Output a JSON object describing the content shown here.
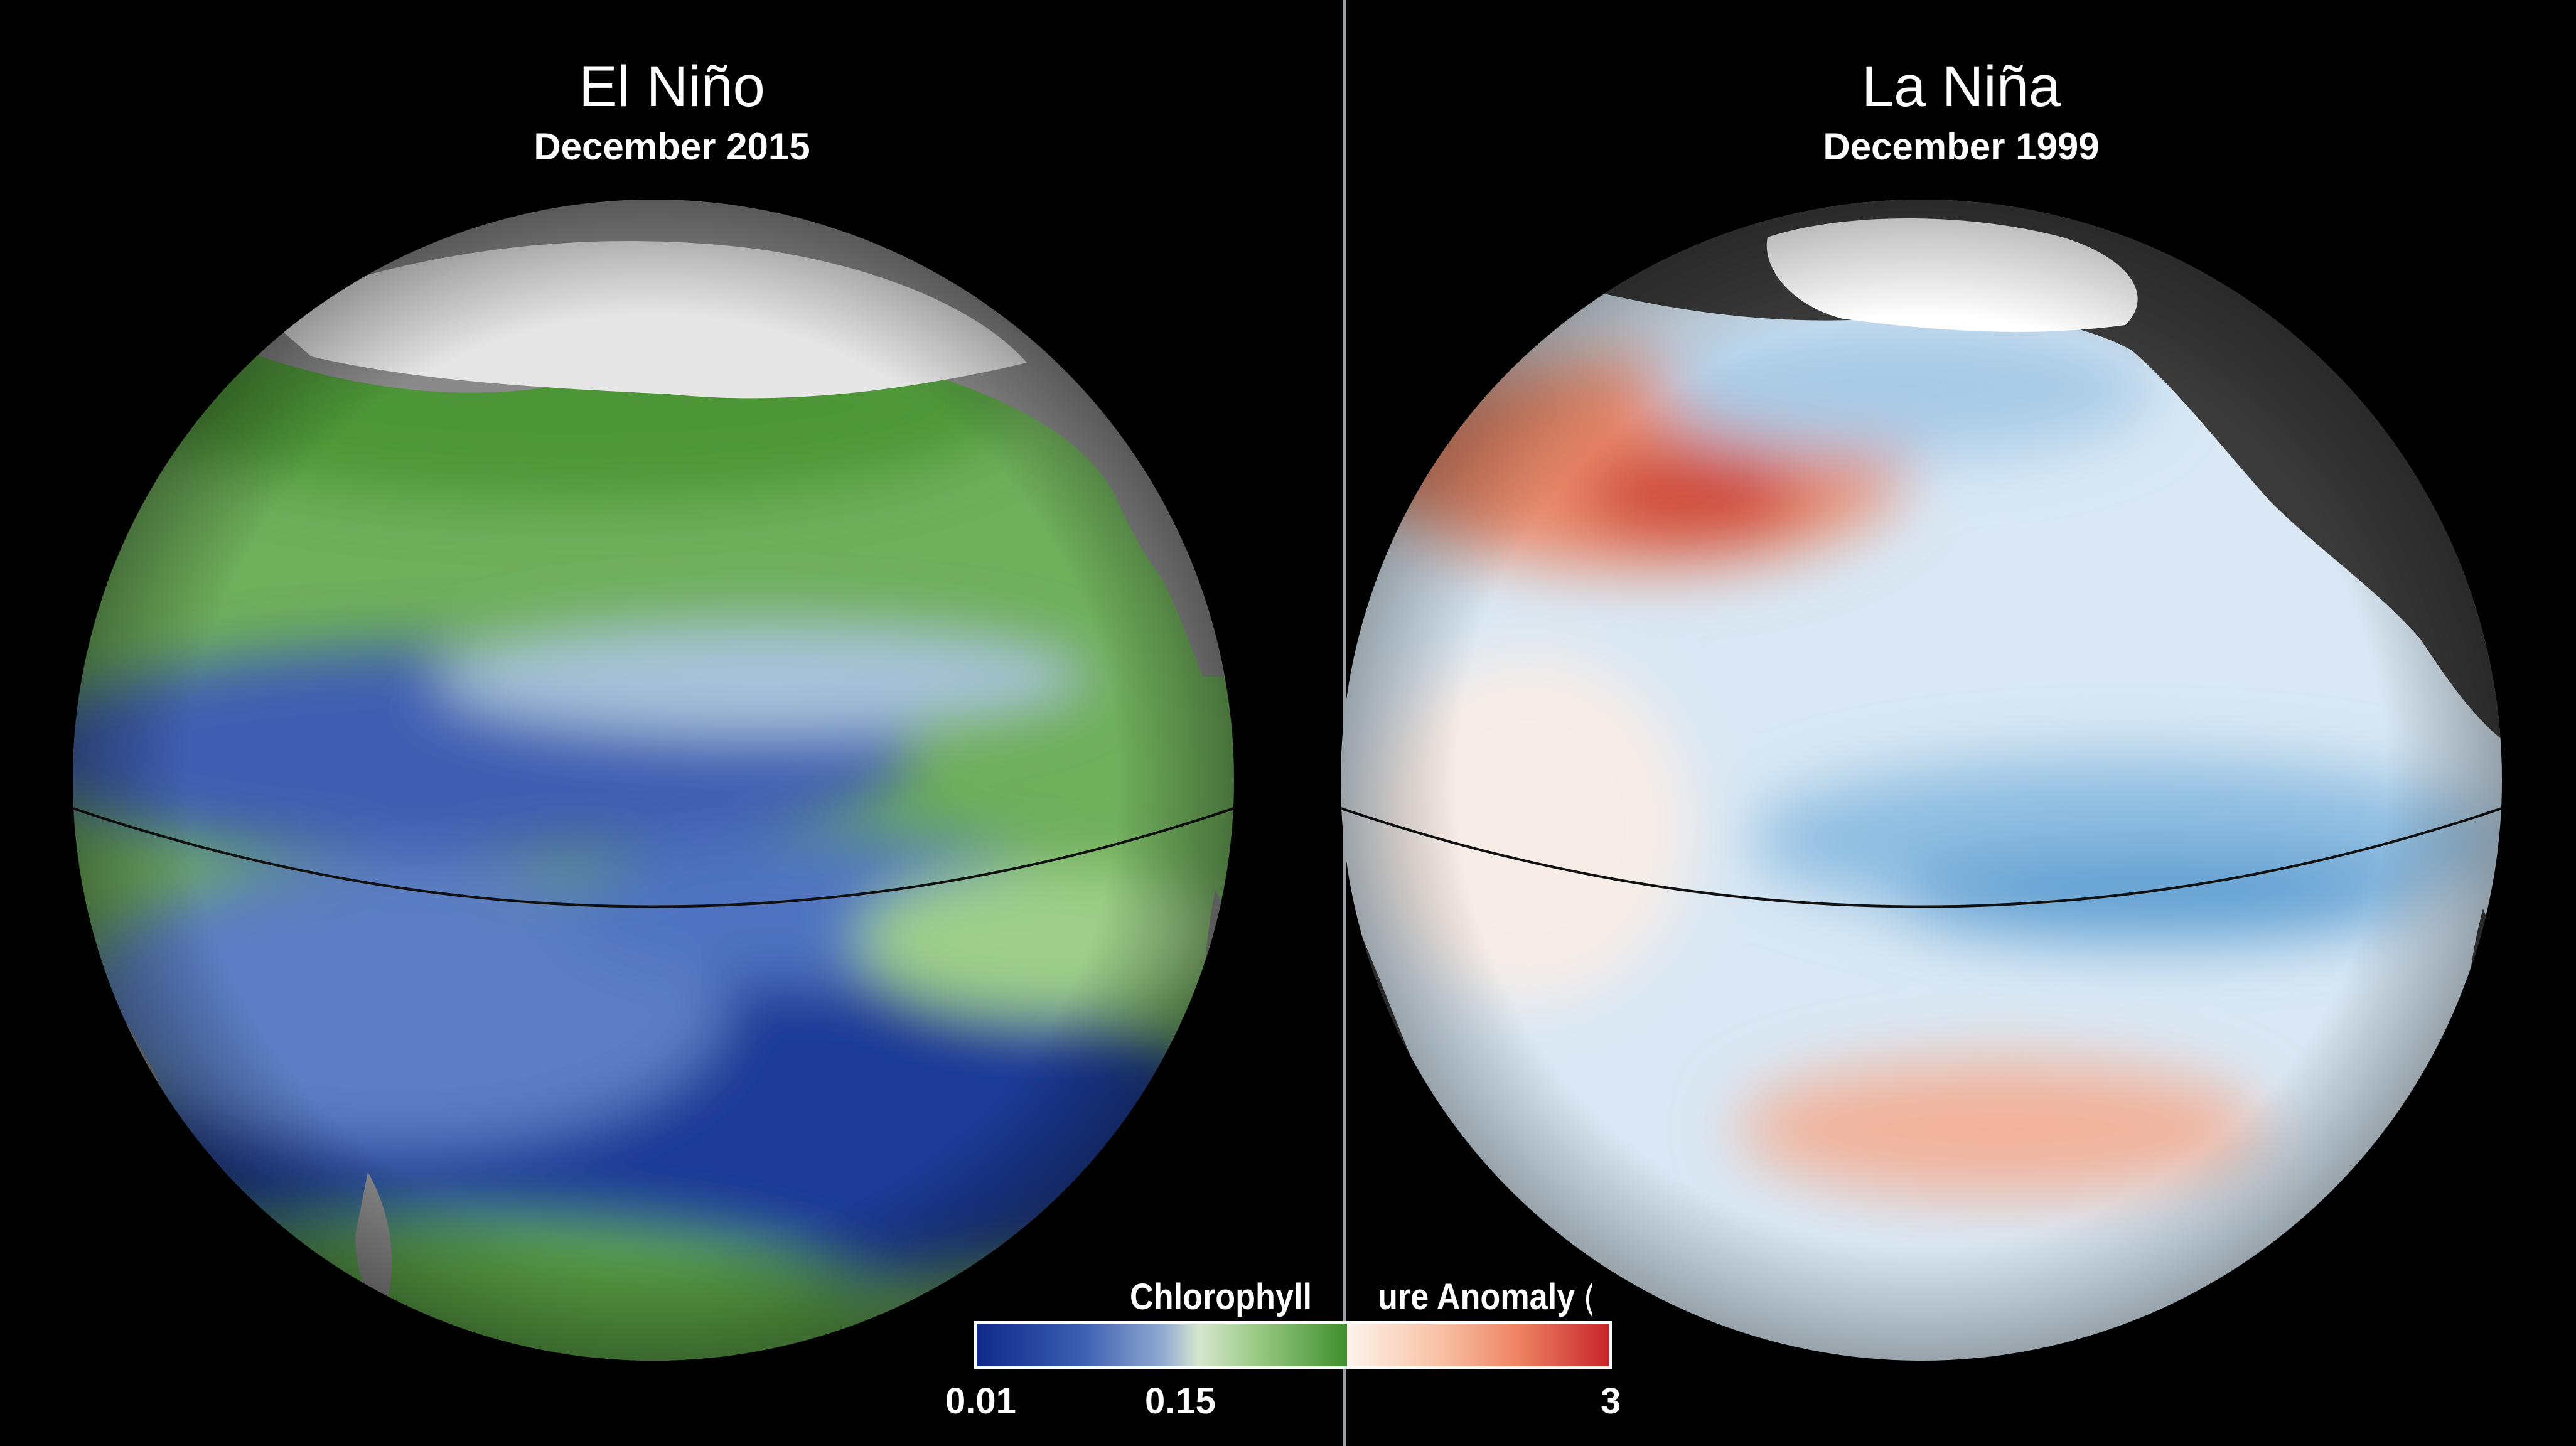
{
  "panels": {
    "left": {
      "title": "El Niño",
      "subtitle": "December 2015"
    },
    "right": {
      "title": "La Niña",
      "subtitle": "December 1999"
    }
  },
  "legend": {
    "left_title": "Chlorophyll",
    "right_title_partial": "ure Anomaly",
    "right_unit": "(°C)",
    "ticks": {
      "low": "0.01",
      "mid": "0.15",
      "high": "3"
    }
  },
  "colors": {
    "background": "#000000",
    "land_gray": "#8a8a8a",
    "land_dark": "#3b3b3b",
    "ice_snow": "#e6e6e6",
    "chl_low": "#0f2a8a",
    "chl_high": "#3f8f2e",
    "sst_cool": "#2f7fc1",
    "sst_warm": "#c8242b"
  }
}
